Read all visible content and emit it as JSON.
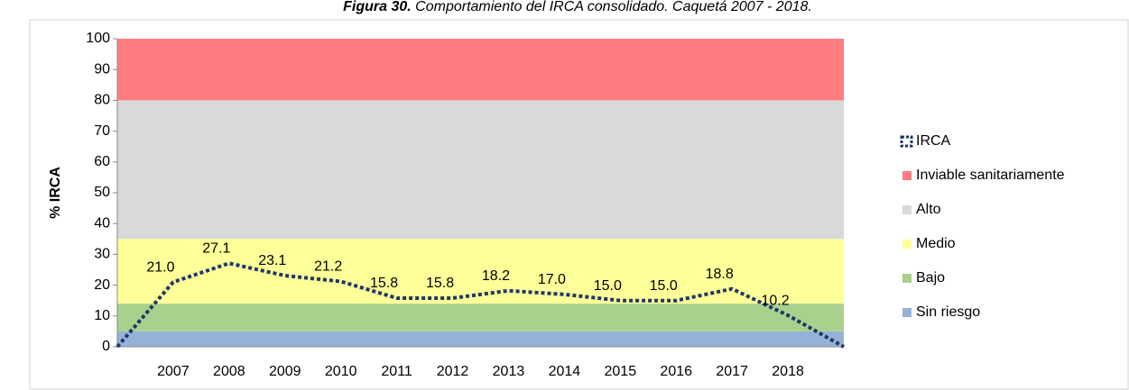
{
  "chart_data": {
    "type": "area",
    "title": {
      "label": "Figura 30.",
      "text": "Comportamiento del IRCA consolidado. Caquetá 2007 - 2018."
    },
    "y_label": "% IRCA",
    "categories": [
      null,
      "2007",
      "2008",
      "2009",
      "2010",
      "2011",
      "2012",
      "2013",
      "2014",
      "2015",
      "2016",
      "2017",
      "2018",
      null
    ],
    "stacked": true,
    "series": [
      {
        "name": "Sin riesgo",
        "color": "#95b3d7",
        "values": [
          5,
          5,
          5,
          5,
          5,
          5,
          5,
          5,
          5,
          5,
          5,
          5,
          5,
          5
        ]
      },
      {
        "name": "Bajo",
        "color": "#a9d18e",
        "values": [
          9,
          9,
          9,
          9,
          9,
          9,
          9,
          9,
          9,
          9,
          9,
          9,
          9,
          9
        ]
      },
      {
        "name": "Medio",
        "color": "#ffff99",
        "values": [
          21,
          21,
          21,
          21,
          21,
          21,
          21,
          21,
          21,
          21,
          21,
          21,
          21,
          21
        ]
      },
      {
        "name": "Alto",
        "color": "#d9d9d9",
        "values": [
          45,
          45,
          45,
          45,
          45,
          45,
          45,
          45,
          45,
          45,
          45,
          45,
          45,
          45
        ]
      },
      {
        "name": "Inviable sanitariamente",
        "color": "#ff7c80",
        "values": [
          20,
          20,
          20,
          20,
          20,
          20,
          20,
          20,
          20,
          20,
          20,
          20,
          20,
          20
        ]
      },
      {
        "name": "IRCA",
        "type": "line",
        "color": "#1f3864",
        "values": [
          0,
          21.0,
          27.1,
          23.1,
          21.2,
          15.8,
          15.8,
          18.2,
          17.0,
          15.0,
          15.0,
          18.8,
          10.2,
          0
        ],
        "value_labels": [
          null,
          "21.0",
          "27.1",
          "23.1",
          "21.2",
          "15.8",
          "15.8",
          "18.2",
          "17.0",
          "15.0",
          "15.0",
          "18.8",
          "10.2",
          null
        ]
      }
    ],
    "ylim": [
      0,
      100
    ],
    "yticks": [
      0,
      10,
      20,
      30,
      40,
      50,
      60,
      70,
      80,
      90,
      100
    ],
    "legend": "right"
  }
}
